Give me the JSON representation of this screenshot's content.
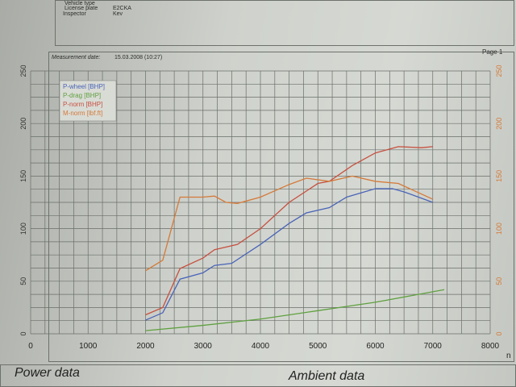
{
  "header": {
    "fields": [
      {
        "label": "Vehicle type",
        "value": ""
      },
      {
        "label": "License plate",
        "value": "E2CKA"
      },
      {
        "label": "Inspector",
        "value": "Kev"
      }
    ]
  },
  "measurement": {
    "label": "Measurement date:",
    "value": "15.03.2008 (10:27)",
    "page": "Page 1"
  },
  "footer": {
    "left": "Power data",
    "right": "Ambient data"
  },
  "chart_data": {
    "type": "line",
    "title": "",
    "xlabel": "n",
    "xlim": [
      0,
      8000
    ],
    "ylim": [
      0,
      250
    ],
    "y2lim": [
      0,
      250
    ],
    "grid": true,
    "legend_placement": "top-left",
    "xticks": [
      "0",
      "1000",
      "2000",
      "3000",
      "4000",
      "5000",
      "6000",
      "7000",
      "8000"
    ],
    "yticks": [
      "0",
      "50",
      "100",
      "150",
      "200",
      "250"
    ],
    "y2ticks": [
      "0",
      "50",
      "100",
      "150",
      "200",
      "250"
    ],
    "series": [
      {
        "name": "P-wheel [BHP]",
        "color": "#4a64b8",
        "x": [
          2000,
          2300,
          2600,
          3000,
          3200,
          3500,
          4000,
          4500,
          4800,
          5200,
          5500,
          6000,
          6300,
          6500,
          7000
        ],
        "y": [
          13,
          20,
          52,
          58,
          65,
          67,
          85,
          105,
          115,
          120,
          130,
          138,
          138,
          135,
          125
        ]
      },
      {
        "name": "P-drag [BHP]",
        "color": "#5fa040",
        "x": [
          2000,
          3000,
          4000,
          5000,
          6000,
          7200
        ],
        "y": [
          3,
          8,
          14,
          22,
          30,
          42
        ]
      },
      {
        "name": "P-norm [BHP]",
        "color": "#c65040",
        "x": [
          2000,
          2300,
          2600,
          3000,
          3200,
          3600,
          4000,
          4500,
          5000,
          5200,
          5600,
          6000,
          6400,
          6800,
          7000
        ],
        "y": [
          18,
          25,
          62,
          72,
          80,
          85,
          100,
          125,
          143,
          145,
          160,
          172,
          178,
          177,
          178
        ]
      },
      {
        "name": "M-norm [lbf.ft]",
        "color": "#d47a3a",
        "x": [
          2000,
          2300,
          2600,
          3000,
          3200,
          3400,
          3600,
          4000,
          4500,
          4800,
          5200,
          5600,
          6000,
          6400,
          7000
        ],
        "y": [
          60,
          70,
          130,
          130,
          131,
          125,
          124,
          130,
          142,
          148,
          145,
          150,
          145,
          143,
          128
        ]
      }
    ]
  }
}
